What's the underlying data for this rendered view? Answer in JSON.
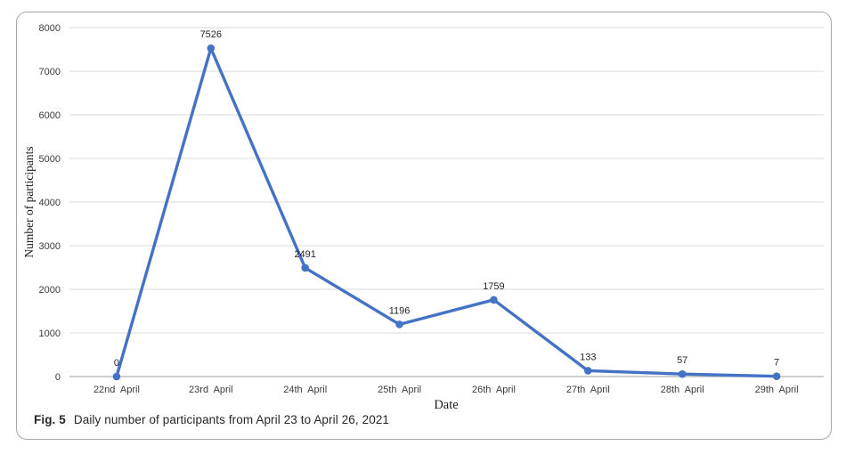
{
  "figure": {
    "caption_label": "Fig. 5",
    "caption_text": "Daily number of participants from April 23 to April 26, 2021"
  },
  "chart_data": {
    "type": "line",
    "title": "",
    "xlabel": "Date",
    "ylabel": "Number of participants",
    "categories": [
      "22nd  April",
      "23rd  April",
      "24th  April",
      "25th  April",
      "26th  April",
      "27th  April",
      "28th  April",
      "29th  April"
    ],
    "values": [
      0,
      7526,
      2491,
      1196,
      1759,
      133,
      57,
      7
    ],
    "ylim": [
      0,
      8000
    ],
    "ytick_step": 1000,
    "grid": "horizontal",
    "legend": "none",
    "line_color": "#4472C4",
    "marker_color": "#4472C4",
    "grid_color": "#D9D9D9",
    "axis_color": "#BDBDBD",
    "tick_color": "#3B3B3B",
    "data_label_color": "#262626",
    "axis_title_color": "#1A1A1A"
  }
}
